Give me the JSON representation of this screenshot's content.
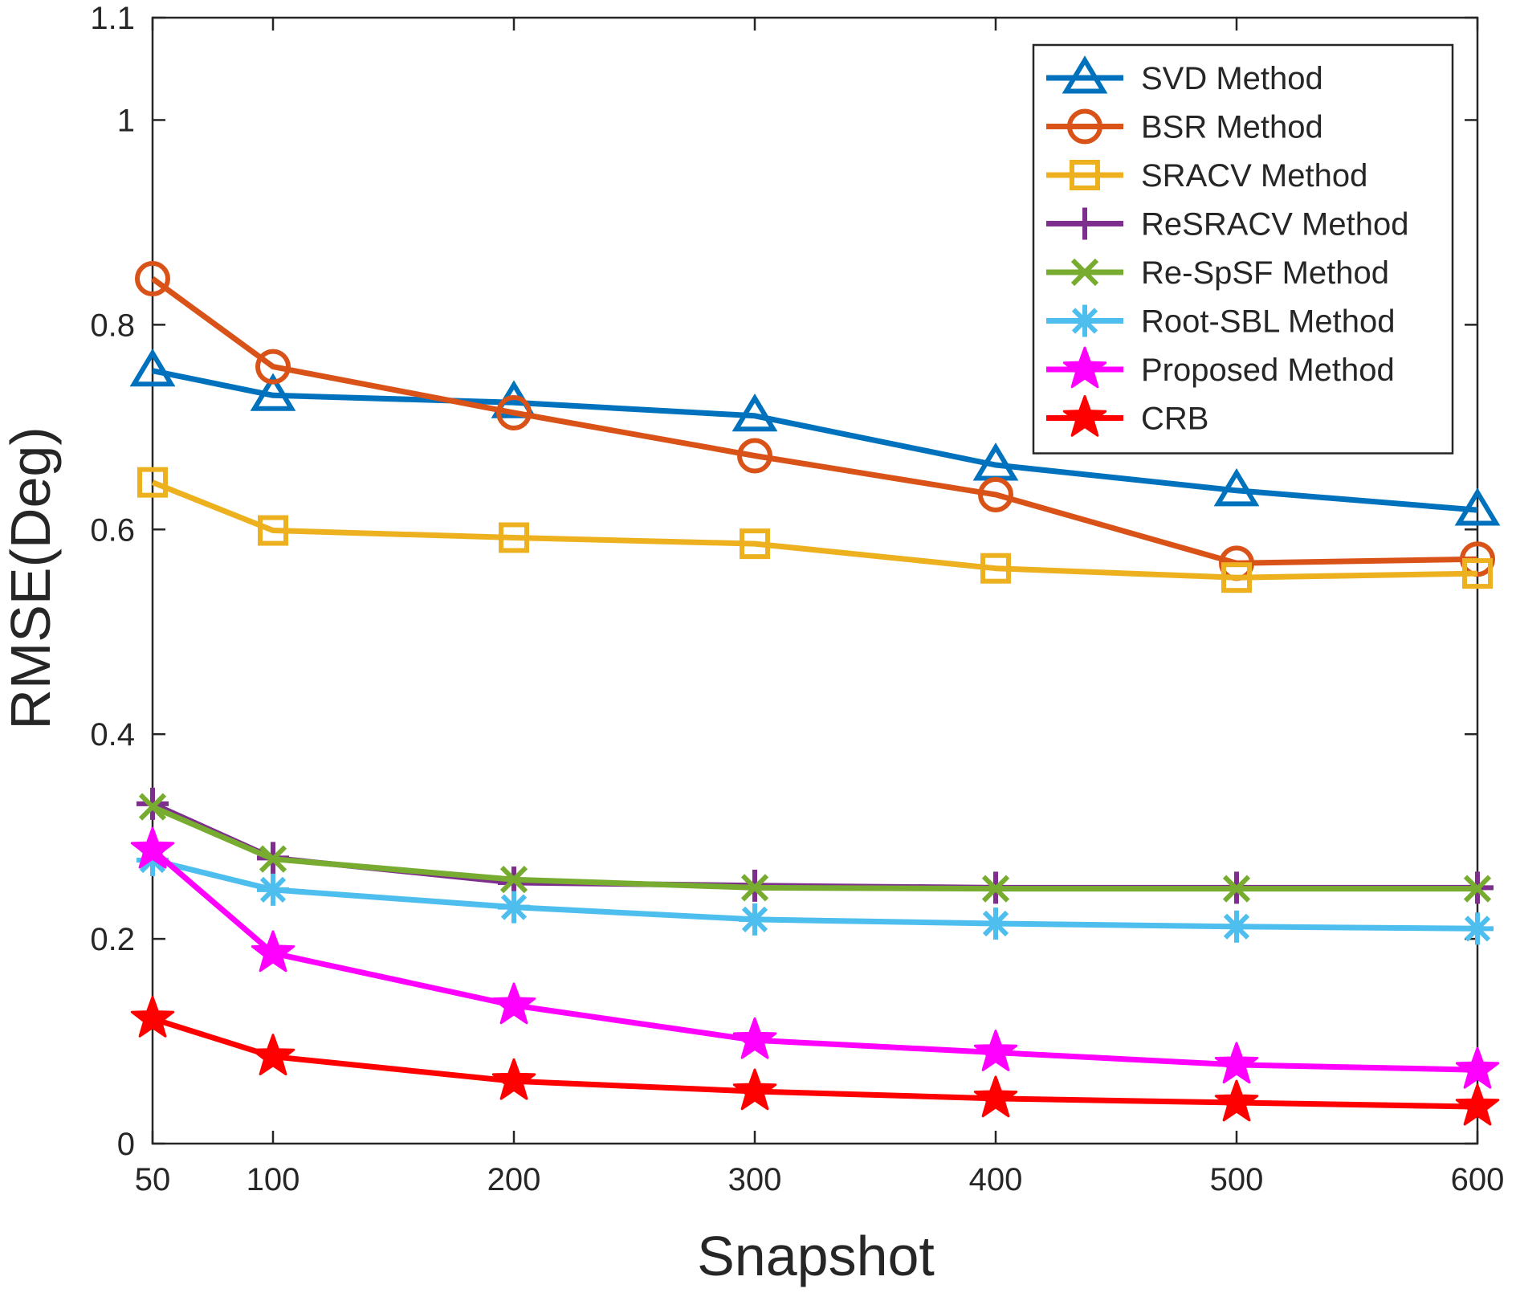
{
  "chart_data": {
    "type": "line",
    "title": "",
    "xlabel": "Snapshot",
    "ylabel": "RMSE(Deg)",
    "x": [
      50,
      100,
      200,
      300,
      400,
      500,
      600
    ],
    "xlim": [
      50,
      600
    ],
    "ylim": [
      0,
      1.1
    ],
    "xticks": [
      50,
      100,
      200,
      300,
      400,
      500,
      600
    ],
    "xtick_labels": [
      "50",
      "100",
      "200",
      "300",
      "400",
      "500",
      "600"
    ],
    "yticks": [
      0,
      0.2,
      0.4,
      0.6,
      0.8,
      1,
      1.1
    ],
    "ytick_labels": [
      "0",
      "0.2",
      "0.4",
      "0.6",
      "0.8",
      "1",
      "1.1"
    ],
    "grid": false,
    "legend_position": "top-right",
    "series": [
      {
        "name": "SVD Method",
        "color": "#0072BD",
        "marker": "triangle",
        "values": [
          0.755,
          0.731,
          0.724,
          0.711,
          0.663,
          0.638,
          0.619
        ]
      },
      {
        "name": "BSR Method",
        "color": "#D95319",
        "marker": "circle",
        "values": [
          0.845,
          0.759,
          0.714,
          0.672,
          0.634,
          0.567,
          0.571
        ]
      },
      {
        "name": "SRACV Method",
        "color": "#EDB120",
        "marker": "square",
        "values": [
          0.646,
          0.599,
          0.592,
          0.586,
          0.562,
          0.553,
          0.557
        ]
      },
      {
        "name": "ReSRACV Method",
        "color": "#7E2F8E",
        "marker": "plus",
        "values": [
          0.332,
          0.279,
          0.255,
          0.252,
          0.25,
          0.25,
          0.25
        ]
      },
      {
        "name": "Re-SpSF Method",
        "color": "#77AC30",
        "marker": "x",
        "values": [
          0.329,
          0.278,
          0.258,
          0.25,
          0.249,
          0.249,
          0.249
        ]
      },
      {
        "name": "Root-SBL Method",
        "color": "#4DBEEE",
        "marker": "asterisk",
        "values": [
          0.277,
          0.248,
          0.231,
          0.219,
          0.215,
          0.212,
          0.21
        ]
      },
      {
        "name": "Proposed Method",
        "color": "#FF00FF",
        "marker": "star",
        "values": [
          0.287,
          0.186,
          0.135,
          0.101,
          0.089,
          0.077,
          0.072
        ]
      },
      {
        "name": "CRB",
        "color": "#FF0000",
        "marker": "star",
        "values": [
          0.122,
          0.085,
          0.061,
          0.051,
          0.044,
          0.04,
          0.036
        ]
      }
    ]
  }
}
